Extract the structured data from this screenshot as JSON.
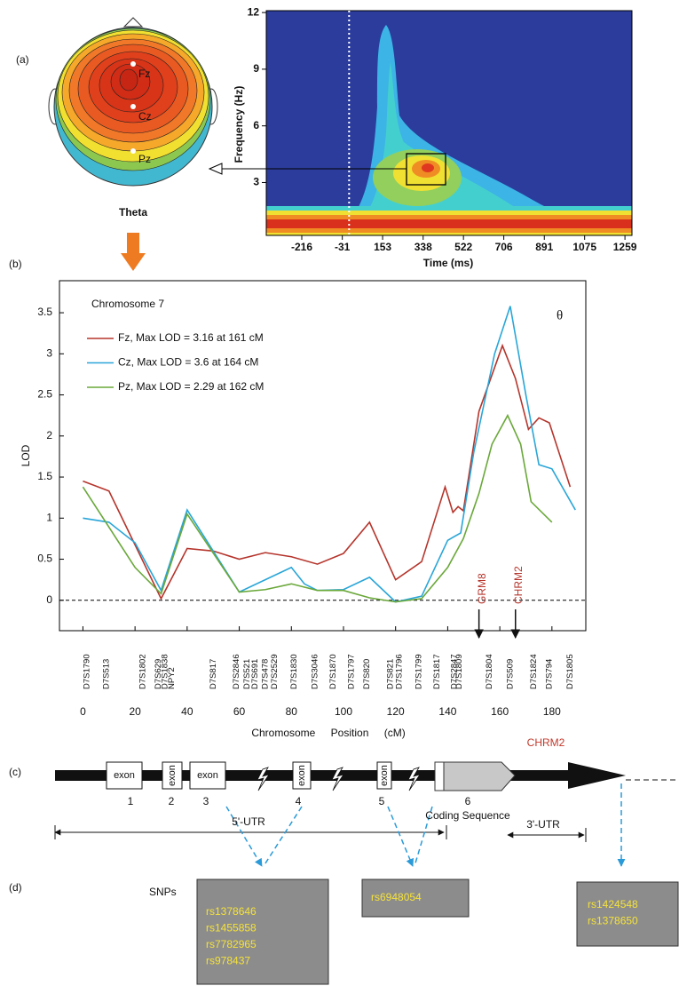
{
  "panel_labels": [
    "(a)",
    "(b)",
    "(c)",
    "(d)"
  ],
  "topomap": {
    "electrodes": [
      "Fz",
      "Cz",
      "Pz"
    ],
    "band": "Theta"
  },
  "chart_data": [
    {
      "type": "heatmap",
      "xlabel": "Time (ms)",
      "ylabel": "Frequency (Hz)",
      "xlim": [
        -378,
        1291
      ],
      "ylim": [
        0.2,
        12.1
      ],
      "xticks": [
        -216,
        -31,
        153,
        338,
        522,
        706,
        891,
        1075,
        1259
      ],
      "yticks": [
        3,
        6,
        9,
        12
      ],
      "onset": 0
    },
    {
      "type": "line",
      "title": "Chromosome 7",
      "annotation": "θ",
      "xlabel": "Chromosome Position (cM)",
      "ylabel": "LOD",
      "xlim": [
        -9,
        193
      ],
      "ylim": [
        -0.37,
        3.89
      ],
      "xticks": [
        0,
        20,
        40,
        60,
        80,
        100,
        120,
        140,
        160,
        180
      ],
      "yticks": [
        0,
        0.5,
        1,
        1.5,
        2,
        2.5,
        3,
        3.5
      ],
      "series": [
        {
          "name": "Fz, Max LOD = 3.16 at 161 cM",
          "color": "#b5352c",
          "x": [
            0,
            10,
            30,
            40,
            50,
            60,
            70,
            80,
            90,
            100,
            110,
            120,
            130,
            139,
            142,
            144,
            146,
            152,
            161,
            166,
            171,
            175,
            179,
            187
          ],
          "values": [
            1.45,
            1.33,
            0.02,
            0.63,
            0.6,
            0.5,
            0.58,
            0.53,
            0.44,
            0.57,
            0.95,
            0.25,
            0.47,
            1.38,
            1.07,
            1.14,
            1.09,
            2.3,
            3.1,
            2.7,
            2.08,
            2.22,
            2.16,
            1.38
          ]
        },
        {
          "name": "Cz, Max LOD = 3.6 at 164 cM",
          "color": "#2aa6d8",
          "x": [
            0,
            10,
            20,
            30,
            40,
            60,
            70,
            80,
            85,
            90,
            100,
            110,
            120,
            130,
            140,
            145,
            150,
            158,
            164,
            170,
            175,
            180,
            189
          ],
          "values": [
            1.0,
            0.95,
            0.7,
            0.12,
            1.1,
            0.1,
            0.25,
            0.4,
            0.2,
            0.12,
            0.13,
            0.28,
            -0.02,
            0.05,
            0.73,
            0.82,
            1.8,
            3.0,
            3.58,
            2.5,
            1.65,
            1.6,
            1.1
          ]
        },
        {
          "name": "Pz, Max LOD = 2.29 at 162 cM",
          "color": "#6aa83a",
          "x": [
            0,
            20,
            30,
            40,
            60,
            70,
            80,
            90,
            100,
            110,
            120,
            130,
            140,
            146,
            152,
            157,
            163,
            168,
            172,
            180
          ],
          "values": [
            1.38,
            0.4,
            0.08,
            1.05,
            0.1,
            0.13,
            0.2,
            0.12,
            0.12,
            0.03,
            -0.02,
            0.02,
            0.4,
            0.75,
            1.3,
            1.9,
            2.25,
            1.9,
            1.2,
            0.95
          ]
        }
      ],
      "markers": [
        {
          "name": "D7S1790",
          "position": 0.5
        },
        {
          "name": "D7S513",
          "position": 8
        },
        {
          "name": "D7S1802",
          "position": 22
        },
        {
          "name": "D7S629",
          "position": 28
        },
        {
          "name": "D7S1838",
          "position": 30.5
        },
        {
          "name": "NPY2",
          "position": 33
        },
        {
          "name": "D7S817",
          "position": 49
        },
        {
          "name": "D7S2846",
          "position": 58
        },
        {
          "name": "D7S521",
          "position": 62
        },
        {
          "name": "D7S691",
          "position": 65
        },
        {
          "name": "D7S478",
          "position": 69
        },
        {
          "name": "D7S2529",
          "position": 72.5
        },
        {
          "name": "D7S1830",
          "position": 80
        },
        {
          "name": "D7S3046",
          "position": 88
        },
        {
          "name": "D7S1870",
          "position": 95
        },
        {
          "name": "D7S1797",
          "position": 102
        },
        {
          "name": "D7S820",
          "position": 108
        },
        {
          "name": "D7S821",
          "position": 117
        },
        {
          "name": "D7S1796",
          "position": 120.5
        },
        {
          "name": "D7S1799",
          "position": 128
        },
        {
          "name": "D7S1817",
          "position": 135
        },
        {
          "name": "D7S2847",
          "position": 141.5
        },
        {
          "name": "D7S1809",
          "position": 143.5
        },
        {
          "name": "D7S1804",
          "position": 155
        },
        {
          "name": "D7S509",
          "position": 163
        },
        {
          "name": "D7S1824",
          "position": 172
        },
        {
          "name": "D7S794",
          "position": 178
        },
        {
          "name": "D7S1805",
          "position": 186
        }
      ],
      "genes": [
        {
          "name": "GRM8",
          "position": 152
        },
        {
          "name": "CHRM2",
          "position": 166
        }
      ],
      "gene_color": "#b5352c"
    }
  ],
  "gene": {
    "name": "CHRM2",
    "exons": [
      {
        "label": "exon",
        "number": 1
      },
      {
        "label": "exon",
        "number": 2
      },
      {
        "label": "exon",
        "number": 3
      },
      {
        "label": "exon",
        "number": 4
      },
      {
        "label": "exon",
        "number": 5
      }
    ],
    "coding_label": "Coding Sequence",
    "coding_number": 6,
    "utr5": "5'-UTR",
    "utr3": "3'-UTR"
  },
  "snps": {
    "label": "SNPs",
    "groups": [
      [
        "rs1378646",
        "rs1455858",
        "rs7782965",
        "rs978437"
      ],
      [
        "rs6948054"
      ],
      [
        "rs1424548",
        "rs1378650"
      ]
    ]
  }
}
